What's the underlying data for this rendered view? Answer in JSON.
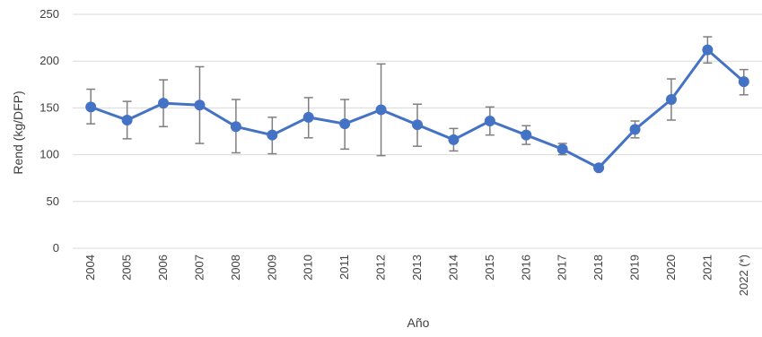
{
  "chart_data": {
    "type": "line",
    "xlabel": "Año",
    "ylabel": "Rend (kg/DFP)",
    "ylim": [
      0,
      250
    ],
    "yticks": [
      "0",
      "50",
      "100",
      "150",
      "200",
      "250"
    ],
    "categories": [
      "2004",
      "2005",
      "2006",
      "2007",
      "2008",
      "2009",
      "2010",
      "2011",
      "2012",
      "2013",
      "2014",
      "2015",
      "2016",
      "2017",
      "2018",
      "2019",
      "2020",
      "2021",
      "2022 (*)"
    ],
    "series": [
      {
        "values": [
          151,
          137,
          155,
          153,
          130,
          121,
          140,
          133,
          148,
          132,
          116,
          136,
          121,
          106,
          86,
          127,
          159,
          212,
          178
        ],
        "error_low": [
          133,
          117,
          130,
          112,
          102,
          101,
          118,
          106,
          99,
          109,
          104,
          121,
          111,
          100,
          86,
          118,
          137,
          198,
          164
        ],
        "error_high": [
          170,
          157,
          180,
          194,
          159,
          140,
          161,
          159,
          197,
          154,
          128,
          151,
          131,
          112,
          86,
          136,
          181,
          226,
          191
        ],
        "color": "#4472C4"
      }
    ],
    "errorbar_color": "#7f7f7f",
    "gridline_color": "#d9d9d9",
    "grid": true
  }
}
